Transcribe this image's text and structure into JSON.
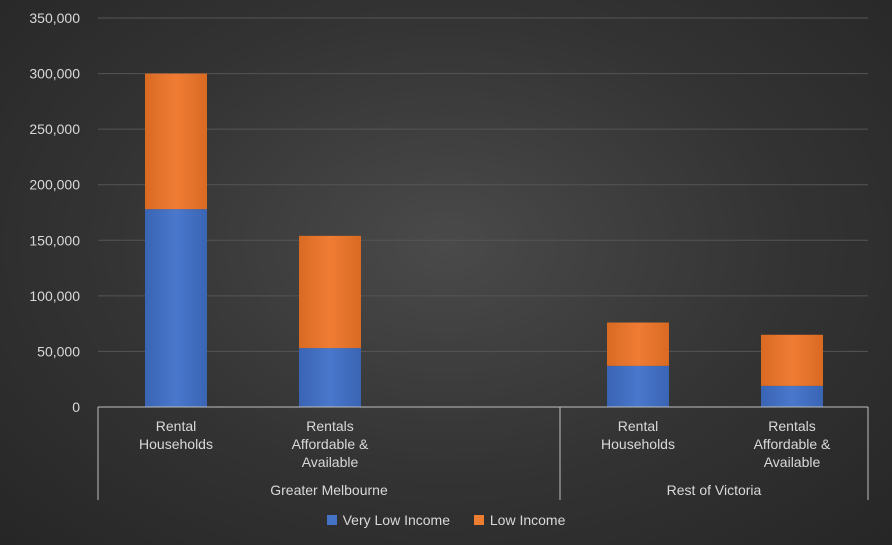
{
  "chart_data": {
    "type": "bar",
    "stacked": true,
    "categories": [
      {
        "label": [
          "Rental",
          "Households"
        ],
        "group": "Greater Melbourne"
      },
      {
        "label": [
          "Rentals",
          "Affordable &",
          "Available"
        ],
        "group": "Greater Melbourne"
      },
      {
        "label": [
          "Rental",
          "Households"
        ],
        "group": "Rest of Victoria"
      },
      {
        "label": [
          "Rentals",
          "Affordable &",
          "Available"
        ],
        "group": "Rest of Victoria"
      }
    ],
    "groups": [
      "Greater Melbourne",
      "Rest of Victoria"
    ],
    "series": [
      {
        "name": "Very Low Income",
        "color": "#4472C4",
        "values": [
          178000,
          53000,
          37000,
          19000
        ]
      },
      {
        "name": "Low Income",
        "color": "#ED7D31",
        "values": [
          122000,
          101000,
          39000,
          46000
        ]
      }
    ],
    "ylim": [
      0,
      350000
    ],
    "yticks": [
      "0",
      "50,000",
      "100,000",
      "150,000",
      "200,000",
      "250,000",
      "300,000",
      "350,000"
    ],
    "grid": true,
    "legend_position": "bottom"
  }
}
